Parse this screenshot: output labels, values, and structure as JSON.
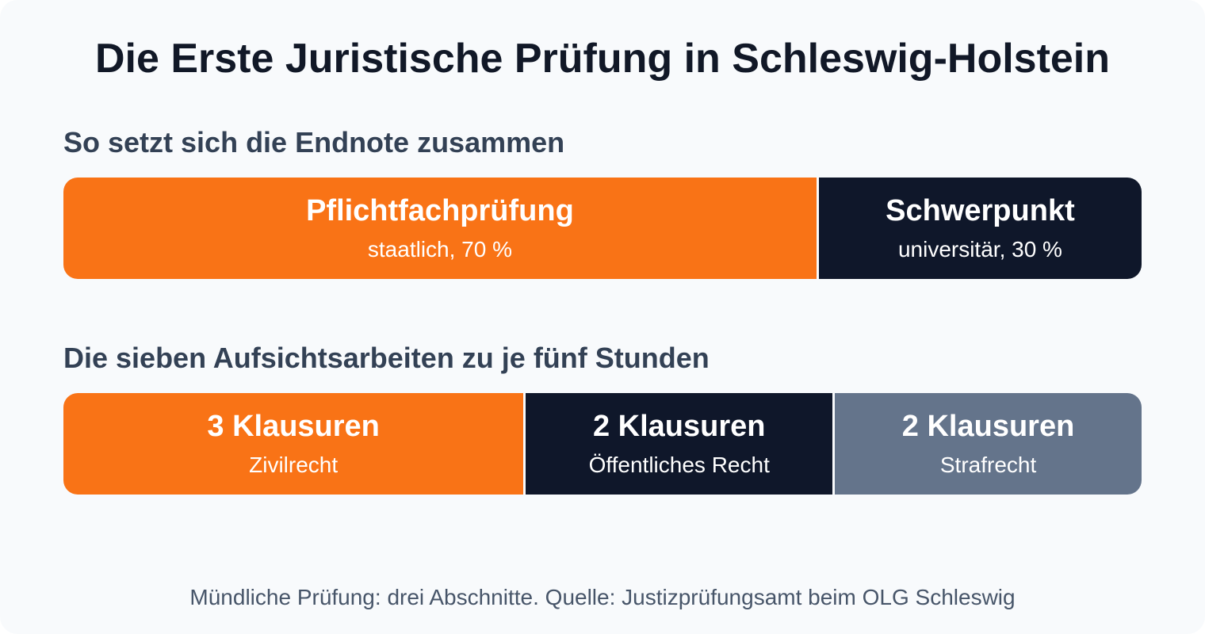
{
  "title": "Die Erste Juristische Prüfung in Schleswig-Holstein",
  "grade_section": {
    "heading": "So setzt sich die Endnote zusammen",
    "segments": [
      {
        "label": "Pflichtfachprüfung",
        "sublabel": "staatlich, 70 %",
        "share": 70,
        "color": "#f97316"
      },
      {
        "label": "Schwerpunkt",
        "sublabel": "universitär, 30 %",
        "share": 30,
        "color": "#0f172a"
      }
    ]
  },
  "exam_section": {
    "heading": "Die sieben Aufsichtsarbeiten zu je fünf Stunden",
    "segments": [
      {
        "label": "3 Klausuren",
        "sublabel": "Zivilrecht",
        "count": 3,
        "color": "#f97316"
      },
      {
        "label": "2 Klausuren",
        "sublabel": "Öffentliches Recht",
        "count": 2,
        "color": "#0f172a"
      },
      {
        "label": "2 Klausuren",
        "sublabel": "Strafrecht",
        "count": 2,
        "color": "#64748b"
      }
    ]
  },
  "footnote": "Mündliche Prüfung: drei Abschnitte. Quelle: Justizprüfungsamt beim OLG Schleswig"
}
